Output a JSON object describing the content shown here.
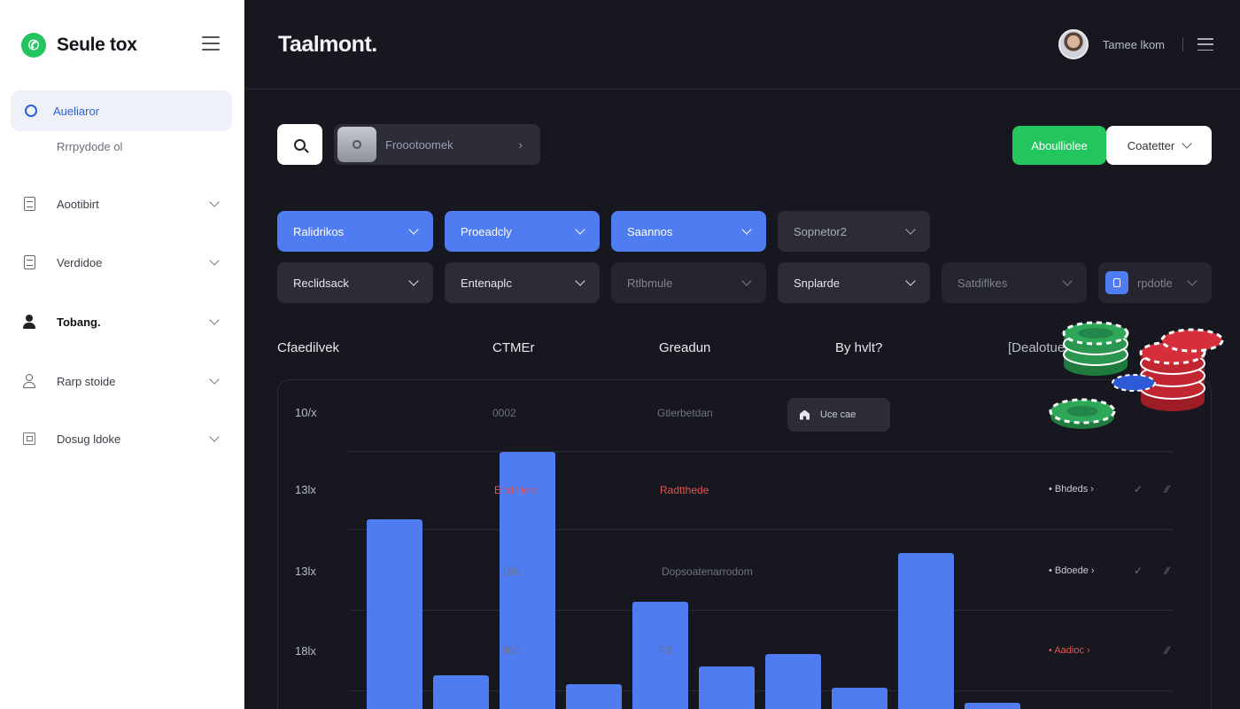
{
  "brand": {
    "name": "Seule tox",
    "logo_icon": "phone-icon",
    "accent": "#22c55e"
  },
  "sidebar": {
    "active_item": {
      "label": "Aueliaror",
      "sub": "Rrrpydode ol"
    },
    "items": [
      {
        "label": "Aootibirt",
        "icon": "document-icon"
      },
      {
        "label": "Verdidoe",
        "icon": "report-icon"
      },
      {
        "label": "Tobang.",
        "icon": "person-icon"
      },
      {
        "label": "Rarp stoide",
        "icon": "user-outline-icon"
      },
      {
        "label": "Dosug ldoke",
        "icon": "box-icon"
      }
    ]
  },
  "header": {
    "title": "Taalmont.",
    "user_name": "Tamee lkom"
  },
  "toolbar": {
    "filter_placeholder": "Froootoomek",
    "primary_label": "Aboulliolee",
    "secondary_label": "Coatetter",
    "primary_color": "#22c55e"
  },
  "dropdowns_row1": [
    {
      "label": "Ralidrikos",
      "style": "blue"
    },
    {
      "label": "Proeadcly",
      "style": "blue"
    },
    {
      "label": "Saannos",
      "style": "blue"
    },
    {
      "label": "Sopnetor2",
      "style": "dark"
    }
  ],
  "dropdowns_row2": [
    {
      "label": "Reclidsack",
      "style": "dark"
    },
    {
      "label": "Entenaplc",
      "style": "dark"
    },
    {
      "label": "Rtlbmule",
      "style": "dim"
    },
    {
      "label": "Snplarde",
      "style": "dark"
    },
    {
      "label": "Satdiflkes",
      "style": "dim"
    },
    {
      "label": "rpdotle",
      "style": "dim"
    }
  ],
  "column_headers": [
    "Cfaedilvek",
    "CTMEr",
    "Greadun",
    "By hvlt?",
    "[Dealotue"
  ],
  "chart_data": {
    "type": "bar",
    "title": "",
    "y_tick_labels": [
      "10/x",
      "13lx",
      "13lx",
      "18lx"
    ],
    "values": [
      6.2,
      1.1,
      8.4,
      0.8,
      3.5,
      1.4,
      1.8,
      0.7,
      5.1,
      0.2
    ],
    "ylim": [
      0,
      10
    ],
    "bar_color": "#4f7cf0"
  },
  "table_cells": {
    "row1": {
      "c1": "0002",
      "c2": "Gtlerbetdan"
    },
    "row2": {
      "c1": "Ertdnlerd",
      "c2": "Radtthede",
      "side": "Bhdeds"
    },
    "row3": {
      "c1": "16lb",
      "c2": "Dopsoatenarrodom",
      "side": "Bdoede"
    },
    "row4": {
      "c1": "00d",
      "c2": "F3",
      "side": "Aadioc"
    }
  },
  "tooltip": {
    "label": "Uce cae"
  }
}
